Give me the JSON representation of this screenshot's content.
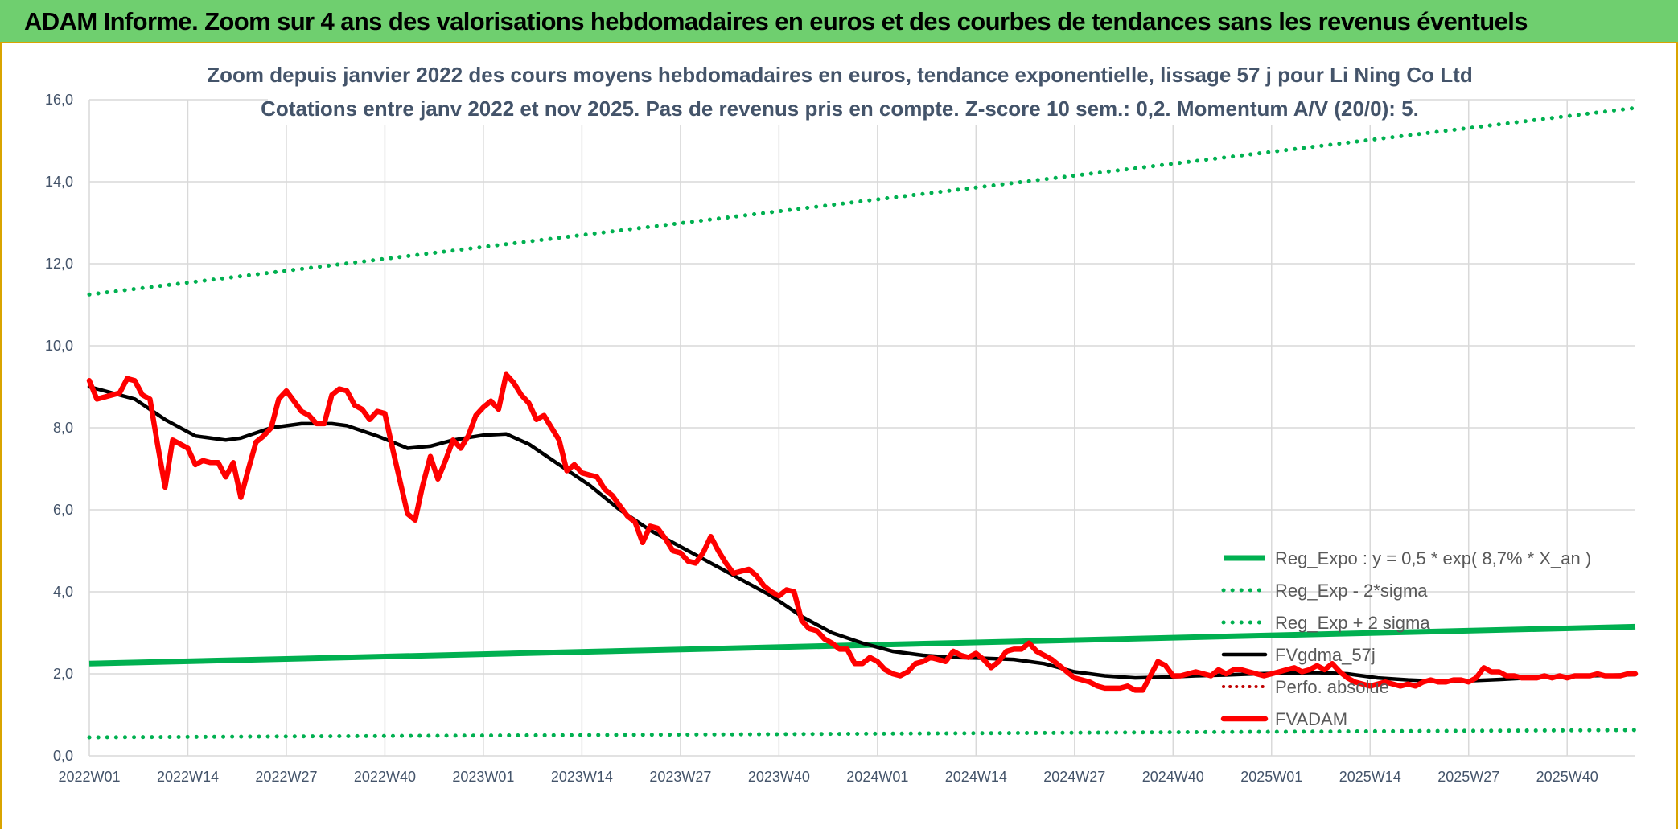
{
  "header": {
    "title": "ADAM Informe. Zoom sur 4 ans des valorisations hebdomadaires en euros et des courbes de tendances sans les revenus éventuels"
  },
  "chart_data": {
    "type": "line",
    "title": "",
    "subtitle_lines": [
      "Zoom depuis janvier 2022 des cours moyens hebdomadaires en euros, tendance exponentielle, lissage 57 j pour Li Ning Co Ltd",
      "Cotations entre janv 2022 et nov 2025. Pas de revenus pris en compte. Z-score 10 sem.: 0,2. Momentum A/V (20/0): 5."
    ],
    "xlabel": "",
    "ylabel": "",
    "ylim": [
      0,
      16
    ],
    "y_ticks": [
      "0,0",
      "2,0",
      "4,0",
      "6,0",
      "8,0",
      "10,0",
      "12,0",
      "14,0",
      "16,0"
    ],
    "x_ticks": [
      {
        "label": "2022W01",
        "week": 0
      },
      {
        "label": "2022W14",
        "week": 13
      },
      {
        "label": "2022W27",
        "week": 26
      },
      {
        "label": "2022W40",
        "week": 39
      },
      {
        "label": "2023W01",
        "week": 52
      },
      {
        "label": "2023W14",
        "week": 65
      },
      {
        "label": "2023W27",
        "week": 78
      },
      {
        "label": "2023W40",
        "week": 91
      },
      {
        "label": "2024W01",
        "week": 104
      },
      {
        "label": "2024W14",
        "week": 117
      },
      {
        "label": "2024W27",
        "week": 130
      },
      {
        "label": "2024W40",
        "week": 143
      },
      {
        "label": "2025W01",
        "week": 156
      },
      {
        "label": "2025W14",
        "week": 169
      },
      {
        "label": "2025W27",
        "week": 182
      },
      {
        "label": "2025W40",
        "week": 195
      }
    ],
    "x_last_week": 204,
    "grid": true,
    "legend_position": "bottom-right",
    "colors": {
      "reg_expo": "#00b050",
      "fvadam": "#ff0000",
      "fvgdma": "#000000",
      "perfo": "#c00000",
      "grid": "#d9d9d9",
      "axis_text": "#44546a"
    },
    "series": [
      {
        "name": "Reg_Expo : y = 0,5 * exp( 8,7% *  X_an )",
        "style": "solid-green-thick",
        "points": [
          [
            0,
            2.25
          ],
          [
            204,
            3.15
          ]
        ]
      },
      {
        "name": "Reg_Exp - 2*sigma",
        "style": "dotted-green",
        "points": [
          [
            0,
            0.45
          ],
          [
            204,
            0.63
          ]
        ]
      },
      {
        "name": "Reg_Exp + 2 sigma",
        "style": "dotted-green",
        "points": [
          [
            0,
            11.25
          ],
          [
            204,
            15.8
          ]
        ]
      },
      {
        "name": "FVgdma_57j",
        "style": "solid-black",
        "points": [
          [
            0,
            9.0
          ],
          [
            6,
            8.7
          ],
          [
            10,
            8.2
          ],
          [
            14,
            7.8
          ],
          [
            18,
            7.7
          ],
          [
            20,
            7.75
          ],
          [
            24,
            8.0
          ],
          [
            28,
            8.1
          ],
          [
            32,
            8.1
          ],
          [
            34,
            8.05
          ],
          [
            38,
            7.8
          ],
          [
            42,
            7.5
          ],
          [
            45,
            7.55
          ],
          [
            48,
            7.7
          ],
          [
            52,
            7.82
          ],
          [
            55,
            7.85
          ],
          [
            58,
            7.6
          ],
          [
            62,
            7.1
          ],
          [
            66,
            6.6
          ],
          [
            70,
            6.0
          ],
          [
            74,
            5.5
          ],
          [
            78,
            5.1
          ],
          [
            82,
            4.7
          ],
          [
            86,
            4.3
          ],
          [
            90,
            3.9
          ],
          [
            94,
            3.4
          ],
          [
            98,
            3.0
          ],
          [
            102,
            2.75
          ],
          [
            106,
            2.55
          ],
          [
            110,
            2.45
          ],
          [
            114,
            2.4
          ],
          [
            118,
            2.38
          ],
          [
            122,
            2.35
          ],
          [
            126,
            2.25
          ],
          [
            130,
            2.05
          ],
          [
            134,
            1.95
          ],
          [
            138,
            1.9
          ],
          [
            142,
            1.92
          ],
          [
            146,
            1.95
          ],
          [
            150,
            1.97
          ],
          [
            154,
            2.0
          ],
          [
            158,
            2.02
          ],
          [
            162,
            2.03
          ],
          [
            166,
            2.0
          ],
          [
            170,
            1.9
          ],
          [
            174,
            1.85
          ],
          [
            178,
            1.82
          ],
          [
            182,
            1.83
          ],
          [
            186,
            1.86
          ],
          [
            190,
            1.9
          ],
          [
            194,
            1.93
          ],
          [
            198,
            1.95
          ],
          [
            204,
            1.98
          ]
        ]
      },
      {
        "name": "Perfo. absolue",
        "style": "dotted-darkred",
        "points": []
      },
      {
        "name": "FVADAM",
        "style": "solid-red-thick",
        "points": [
          [
            0,
            9.15
          ],
          [
            1,
            8.7
          ],
          [
            2,
            8.75
          ],
          [
            3,
            8.8
          ],
          [
            4,
            8.85
          ],
          [
            5,
            9.2
          ],
          [
            6,
            9.15
          ],
          [
            7,
            8.8
          ],
          [
            8,
            8.7
          ],
          [
            9,
            7.6
          ],
          [
            10,
            6.55
          ],
          [
            11,
            7.7
          ],
          [
            12,
            7.6
          ],
          [
            13,
            7.5
          ],
          [
            14,
            7.1
          ],
          [
            15,
            7.2
          ],
          [
            16,
            7.15
          ],
          [
            17,
            7.15
          ],
          [
            18,
            6.8
          ],
          [
            19,
            7.15
          ],
          [
            20,
            6.3
          ],
          [
            21,
            7.0
          ],
          [
            22,
            7.65
          ],
          [
            23,
            7.8
          ],
          [
            24,
            8.0
          ],
          [
            25,
            8.7
          ],
          [
            26,
            8.9
          ],
          [
            27,
            8.65
          ],
          [
            28,
            8.4
          ],
          [
            29,
            8.3
          ],
          [
            30,
            8.1
          ],
          [
            31,
            8.1
          ],
          [
            32,
            8.8
          ],
          [
            33,
            8.95
          ],
          [
            34,
            8.9
          ],
          [
            35,
            8.55
          ],
          [
            36,
            8.45
          ],
          [
            37,
            8.2
          ],
          [
            38,
            8.4
          ],
          [
            39,
            8.35
          ],
          [
            40,
            7.5
          ],
          [
            41,
            6.7
          ],
          [
            42,
            5.9
          ],
          [
            43,
            5.75
          ],
          [
            44,
            6.6
          ],
          [
            45,
            7.3
          ],
          [
            46,
            6.75
          ],
          [
            47,
            7.2
          ],
          [
            48,
            7.7
          ],
          [
            49,
            7.5
          ],
          [
            50,
            7.8
          ],
          [
            51,
            8.3
          ],
          [
            52,
            8.5
          ],
          [
            53,
            8.65
          ],
          [
            54,
            8.45
          ],
          [
            55,
            9.3
          ],
          [
            56,
            9.1
          ],
          [
            57,
            8.8
          ],
          [
            58,
            8.6
          ],
          [
            59,
            8.2
          ],
          [
            60,
            8.3
          ],
          [
            61,
            8.0
          ],
          [
            62,
            7.7
          ],
          [
            63,
            6.95
          ],
          [
            64,
            7.1
          ],
          [
            65,
            6.9
          ],
          [
            66,
            6.85
          ],
          [
            67,
            6.8
          ],
          [
            68,
            6.5
          ],
          [
            69,
            6.35
          ],
          [
            70,
            6.1
          ],
          [
            71,
            5.85
          ],
          [
            72,
            5.7
          ],
          [
            73,
            5.2
          ],
          [
            74,
            5.6
          ],
          [
            75,
            5.55
          ],
          [
            76,
            5.3
          ],
          [
            77,
            5.0
          ],
          [
            78,
            4.95
          ],
          [
            79,
            4.75
          ],
          [
            80,
            4.7
          ],
          [
            81,
            4.95
          ],
          [
            82,
            5.35
          ],
          [
            83,
            5.0
          ],
          [
            84,
            4.7
          ],
          [
            85,
            4.45
          ],
          [
            86,
            4.5
          ],
          [
            87,
            4.55
          ],
          [
            88,
            4.4
          ],
          [
            89,
            4.15
          ],
          [
            90,
            4.0
          ],
          [
            91,
            3.9
          ],
          [
            92,
            4.05
          ],
          [
            93,
            4.0
          ],
          [
            94,
            3.3
          ],
          [
            95,
            3.1
          ],
          [
            96,
            3.05
          ],
          [
            97,
            2.85
          ],
          [
            98,
            2.75
          ],
          [
            99,
            2.6
          ],
          [
            100,
            2.6
          ],
          [
            101,
            2.25
          ],
          [
            102,
            2.25
          ],
          [
            103,
            2.4
          ],
          [
            104,
            2.3
          ],
          [
            105,
            2.1
          ],
          [
            106,
            2.0
          ],
          [
            107,
            1.95
          ],
          [
            108,
            2.05
          ],
          [
            109,
            2.25
          ],
          [
            110,
            2.3
          ],
          [
            111,
            2.4
          ],
          [
            112,
            2.35
          ],
          [
            113,
            2.3
          ],
          [
            114,
            2.55
          ],
          [
            115,
            2.45
          ],
          [
            116,
            2.4
          ],
          [
            117,
            2.5
          ],
          [
            118,
            2.35
          ],
          [
            119,
            2.15
          ],
          [
            120,
            2.3
          ],
          [
            121,
            2.55
          ],
          [
            122,
            2.6
          ],
          [
            123,
            2.6
          ],
          [
            124,
            2.75
          ],
          [
            125,
            2.55
          ],
          [
            126,
            2.45
          ],
          [
            127,
            2.35
          ],
          [
            128,
            2.2
          ],
          [
            129,
            2.05
          ],
          [
            130,
            1.9
          ],
          [
            131,
            1.85
          ],
          [
            132,
            1.8
          ],
          [
            133,
            1.7
          ],
          [
            134,
            1.65
          ],
          [
            135,
            1.65
          ],
          [
            136,
            1.65
          ],
          [
            137,
            1.7
          ],
          [
            138,
            1.6
          ],
          [
            139,
            1.6
          ],
          [
            140,
            1.95
          ],
          [
            141,
            2.3
          ],
          [
            142,
            2.2
          ],
          [
            143,
            1.95
          ],
          [
            144,
            1.95
          ],
          [
            145,
            2.0
          ],
          [
            146,
            2.05
          ],
          [
            147,
            2.0
          ],
          [
            148,
            1.95
          ],
          [
            149,
            2.1
          ],
          [
            150,
            2.0
          ],
          [
            151,
            2.1
          ],
          [
            152,
            2.1
          ],
          [
            153,
            2.05
          ],
          [
            154,
            2.0
          ],
          [
            155,
            1.95
          ],
          [
            156,
            2.0
          ],
          [
            157,
            2.05
          ],
          [
            158,
            2.1
          ],
          [
            159,
            2.15
          ],
          [
            160,
            2.05
          ],
          [
            161,
            2.1
          ],
          [
            162,
            2.2
          ],
          [
            163,
            2.1
          ],
          [
            164,
            2.25
          ],
          [
            165,
            2.05
          ],
          [
            166,
            1.9
          ],
          [
            167,
            1.8
          ],
          [
            168,
            1.75
          ],
          [
            169,
            1.7
          ],
          [
            170,
            1.75
          ],
          [
            171,
            1.8
          ],
          [
            172,
            1.75
          ],
          [
            173,
            1.7
          ],
          [
            174,
            1.75
          ],
          [
            175,
            1.7
          ],
          [
            176,
            1.8
          ],
          [
            177,
            1.85
          ],
          [
            178,
            1.8
          ],
          [
            179,
            1.8
          ],
          [
            180,
            1.85
          ],
          [
            181,
            1.85
          ],
          [
            182,
            1.8
          ],
          [
            183,
            1.9
          ],
          [
            184,
            2.15
          ],
          [
            185,
            2.05
          ],
          [
            186,
            2.05
          ],
          [
            187,
            1.95
          ],
          [
            188,
            1.95
          ],
          [
            189,
            1.9
          ],
          [
            190,
            1.9
          ],
          [
            191,
            1.9
          ],
          [
            192,
            1.95
          ],
          [
            193,
            1.9
          ],
          [
            194,
            1.95
          ],
          [
            195,
            1.9
          ],
          [
            196,
            1.95
          ],
          [
            197,
            1.95
          ],
          [
            198,
            1.95
          ],
          [
            199,
            2.0
          ],
          [
            200,
            1.95
          ],
          [
            201,
            1.95
          ],
          [
            202,
            1.95
          ],
          [
            203,
            2.0
          ],
          [
            204,
            2.0
          ]
        ]
      }
    ]
  }
}
